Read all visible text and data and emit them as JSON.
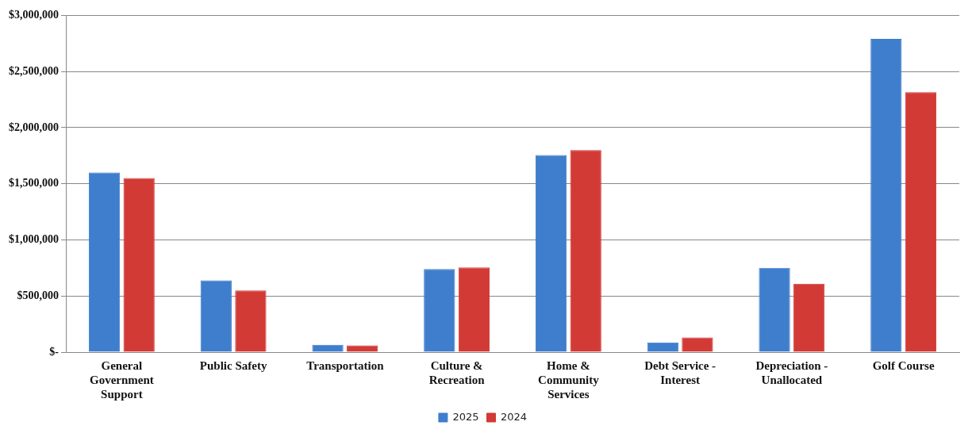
{
  "chart_data": {
    "type": "bar",
    "categories": [
      "General Government Support",
      "Public Safety",
      "Transportation",
      "Culture & Recreation",
      "Home & Community Services",
      "Debt Service - Interest",
      "Depreciation - Unallocated",
      "Golf Course"
    ],
    "series": [
      {
        "name": "2025",
        "color": "#3f7ecc",
        "values": [
          1600000,
          640000,
          65000,
          740000,
          1755000,
          87000,
          750000,
          2790000
        ]
      },
      {
        "name": "2024",
        "color": "#d23a36",
        "values": [
          1550000,
          550000,
          60000,
          755000,
          1800000,
          130000,
          610000,
          2315000
        ]
      }
    ],
    "ylim": [
      0,
      3000000
    ],
    "yticks": [
      {
        "value": 0,
        "label": "$-"
      },
      {
        "value": 500000,
        "label": "$500,000"
      },
      {
        "value": 1000000,
        "label": "$1,000,000"
      },
      {
        "value": 1500000,
        "label": "$1,500,000"
      },
      {
        "value": 2000000,
        "label": "$2,000,000"
      },
      {
        "value": 2500000,
        "label": "$2,500,000"
      },
      {
        "value": 3000000,
        "label": "$3,000,000"
      }
    ],
    "grid": "y",
    "legend": "bottom"
  }
}
